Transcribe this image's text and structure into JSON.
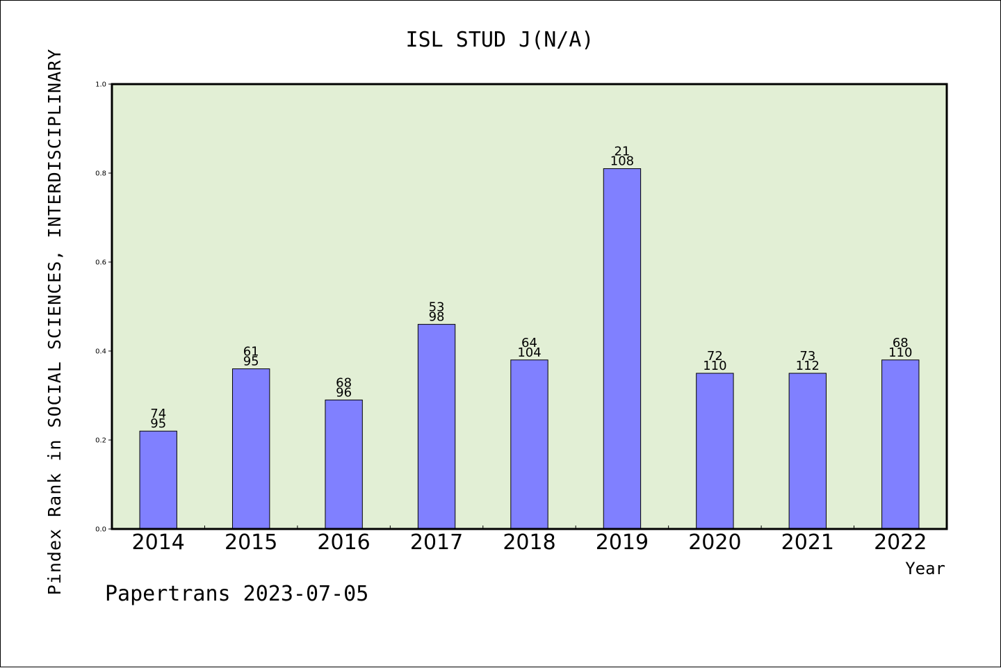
{
  "chart_data": {
    "type": "bar",
    "title": "ISL STUD J(N/A)",
    "xlabel": "Year",
    "ylabel": "Pindex Rank in SOCIAL SCIENCES, INTERDISCIPLINARY",
    "source": "Papertrans 2023-07-05",
    "ylim": [
      0,
      1.0
    ],
    "yticks": [
      "0.0",
      "0.2",
      "0.4",
      "0.6",
      "0.8",
      "1.0"
    ],
    "grid": false,
    "categories": [
      "2014",
      "2015",
      "2016",
      "2017",
      "2018",
      "2019",
      "2020",
      "2021",
      "2022"
    ],
    "values": [
      0.22,
      0.36,
      0.29,
      0.46,
      0.38,
      0.81,
      0.35,
      0.35,
      0.38
    ],
    "rank_labels": [
      "74",
      "61",
      "68",
      "53",
      "64",
      "21",
      "72",
      "73",
      "68"
    ],
    "total_labels": [
      "95",
      "95",
      "96",
      "98",
      "104",
      "108",
      "110",
      "112",
      "110"
    ],
    "colors": {
      "plot_background": "#e2efd5",
      "bar_fill": "#8080ff",
      "bar_stroke": "#000000"
    }
  }
}
